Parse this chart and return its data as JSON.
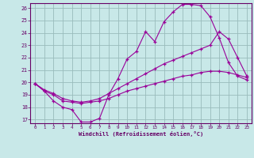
{
  "xlabel": "Windchill (Refroidissement éolien,°C)",
  "xlim": [
    -0.5,
    23.5
  ],
  "ylim": [
    16.7,
    26.4
  ],
  "yticks": [
    17,
    18,
    19,
    20,
    21,
    22,
    23,
    24,
    25,
    26
  ],
  "xticks": [
    0,
    1,
    2,
    3,
    4,
    5,
    6,
    7,
    8,
    9,
    10,
    11,
    12,
    13,
    14,
    15,
    16,
    17,
    18,
    19,
    20,
    21,
    22,
    23
  ],
  "background_color": "#c8e8e8",
  "grid_color": "#99bbbb",
  "line_color": "#990099",
  "line1_x": [
    0,
    1,
    2,
    3,
    4,
    5,
    6,
    7,
    8,
    9,
    10,
    11,
    12,
    13,
    14,
    15,
    16,
    17,
    18,
    19,
    20,
    21,
    22,
    23
  ],
  "line1_y": [
    19.9,
    19.3,
    18.5,
    18.0,
    17.8,
    16.8,
    16.8,
    17.1,
    19.0,
    20.3,
    21.9,
    22.5,
    24.1,
    23.3,
    24.9,
    25.7,
    26.3,
    26.3,
    26.2,
    25.3,
    23.6,
    21.6,
    20.5,
    20.2
  ],
  "line2_x": [
    0,
    1,
    2,
    3,
    4,
    5,
    6,
    7,
    8,
    9,
    10,
    11,
    12,
    13,
    14,
    15,
    16,
    17,
    18,
    19,
    20,
    21,
    22,
    23
  ],
  "line2_y": [
    19.9,
    19.4,
    19.1,
    18.7,
    18.5,
    18.4,
    18.5,
    18.7,
    19.1,
    19.5,
    19.9,
    20.3,
    20.7,
    21.1,
    21.5,
    21.8,
    22.1,
    22.4,
    22.7,
    23.0,
    24.1,
    23.5,
    22.0,
    20.5
  ],
  "line3_x": [
    0,
    1,
    2,
    3,
    4,
    5,
    6,
    7,
    8,
    9,
    10,
    11,
    12,
    13,
    14,
    15,
    16,
    17,
    18,
    19,
    20,
    21,
    22,
    23
  ],
  "line3_y": [
    19.9,
    19.3,
    19.0,
    18.5,
    18.4,
    18.3,
    18.4,
    18.5,
    18.7,
    19.0,
    19.3,
    19.5,
    19.7,
    19.9,
    20.1,
    20.3,
    20.5,
    20.6,
    20.8,
    20.9,
    20.9,
    20.8,
    20.6,
    20.4
  ]
}
